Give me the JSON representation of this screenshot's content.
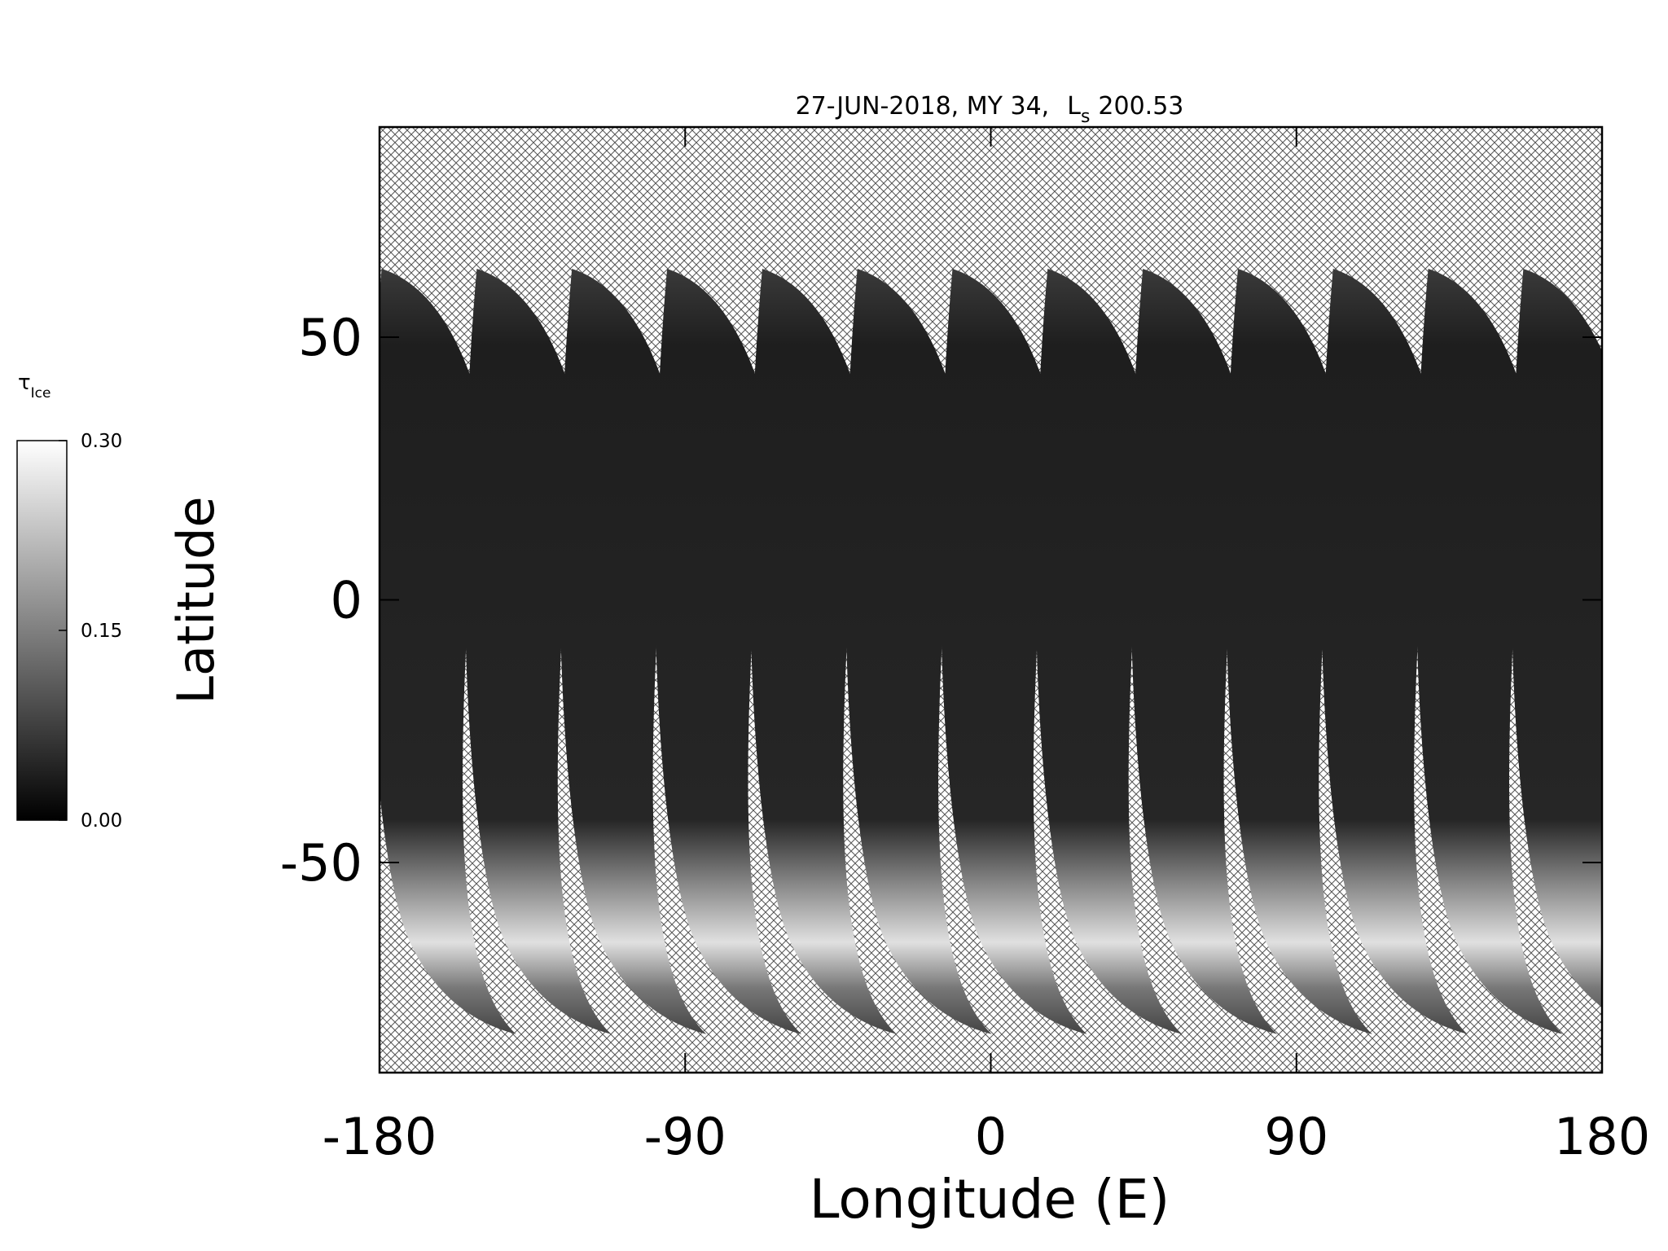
{
  "chart_data": {
    "type": "map",
    "title": "27-JUN-2018, MY 34,",
    "title_symbol": "L",
    "title_symbol_sub": "s",
    "title_value": "200.53",
    "x_label": "Longitude (E)",
    "y_label": "Latitude",
    "xlim": [
      -180,
      180
    ],
    "xticks": [
      -180,
      -90,
      0,
      90,
      180
    ],
    "ylim": [
      -90,
      90
    ],
    "yticks": [
      -50,
      0,
      50
    ],
    "colorbar": {
      "label": "τ",
      "label_sub": "Ice",
      "lim": [
        0,
        0.3
      ],
      "ticks": [
        {
          "value": 0,
          "label": "0.00"
        },
        {
          "value": 0.15,
          "label": "0.15"
        },
        {
          "value": 0.3,
          "label": "0.30"
        }
      ]
    }
  }
}
